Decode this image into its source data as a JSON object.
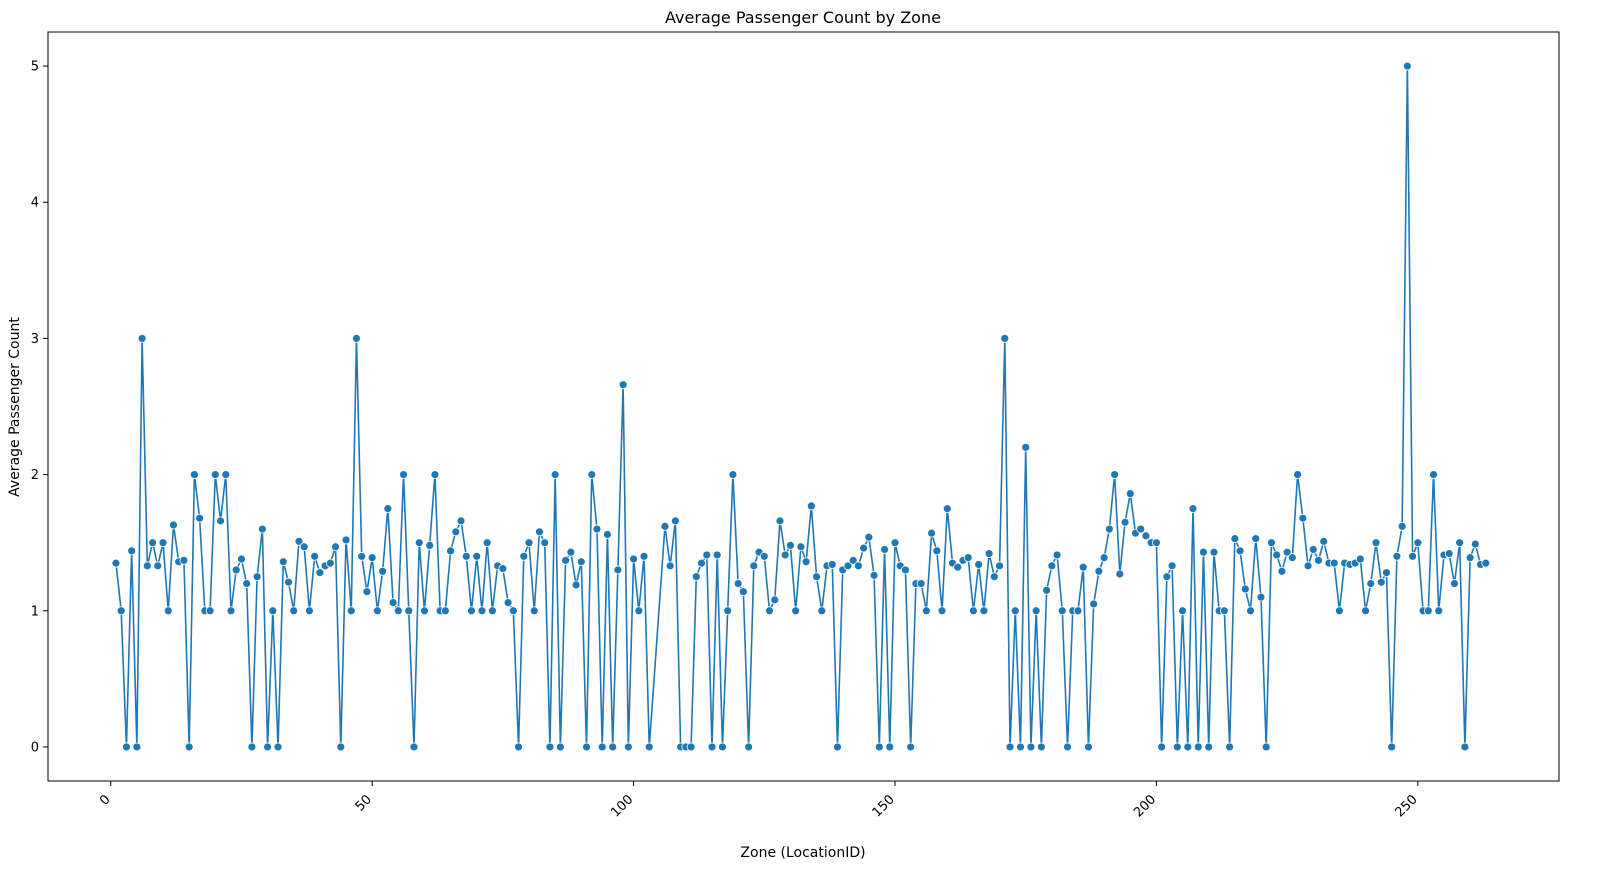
{
  "chart_data": {
    "type": "line",
    "title": "Average Passenger Count by Zone",
    "xlabel": "Zone (LocationID)",
    "ylabel": "Average Passenger Count",
    "xlim": [
      -12,
      277
    ],
    "ylim": [
      -0.25,
      5.25
    ],
    "xticks": [
      0,
      50,
      100,
      150,
      200,
      250
    ],
    "yticks": [
      0,
      1,
      2,
      3,
      4,
      5
    ],
    "grid": false,
    "colors": {
      "line": "#1f77b4",
      "marker": "#1f77b4",
      "marker_edge": "#ffffff"
    },
    "series": [
      {
        "x": [
          1,
          2,
          3,
          4,
          5,
          6,
          7,
          8,
          9,
          10,
          11,
          12,
          13,
          14,
          15,
          16,
          17,
          18,
          19,
          20,
          21,
          22,
          23,
          24,
          25,
          26,
          27,
          28,
          29,
          30,
          31,
          32,
          33,
          34,
          35,
          36,
          37,
          38,
          39,
          40,
          41,
          42,
          43,
          44,
          45,
          46,
          47,
          48,
          49,
          50,
          51,
          52,
          53,
          54,
          55,
          56,
          57,
          58,
          59,
          60,
          61,
          62,
          63,
          64,
          65,
          66,
          67,
          68,
          69,
          70,
          71,
          72,
          73,
          74,
          75,
          76,
          77,
          78,
          79,
          80,
          81,
          82,
          83,
          84,
          85,
          86,
          87,
          88,
          89,
          90,
          91,
          92,
          93,
          94,
          95,
          96,
          97,
          98,
          99,
          100,
          101,
          102,
          103,
          106,
          107,
          108,
          109,
          110,
          111,
          112,
          113,
          114,
          115,
          116,
          117,
          118,
          119,
          120,
          121,
          122,
          123,
          124,
          125,
          126,
          127,
          128,
          129,
          130,
          131,
          132,
          133,
          134,
          135,
          136,
          137,
          138,
          139,
          140,
          141,
          142,
          143,
          144,
          145,
          146,
          147,
          148,
          149,
          150,
          151,
          152,
          153,
          154,
          155,
          156,
          157,
          158,
          159,
          160,
          161,
          162,
          163,
          164,
          165,
          166,
          167,
          168,
          169,
          170,
          171,
          172,
          173,
          174,
          175,
          176,
          177,
          178,
          179,
          180,
          181,
          182,
          183,
          184,
          185,
          186,
          187,
          188,
          189,
          190,
          191,
          192,
          193,
          194,
          195,
          196,
          197,
          198,
          199,
          200,
          201,
          202,
          203,
          204,
          205,
          206,
          207,
          208,
          209,
          210,
          211,
          212,
          213,
          214,
          215,
          216,
          217,
          218,
          219,
          220,
          221,
          222,
          223,
          224,
          225,
          226,
          227,
          228,
          229,
          230,
          231,
          232,
          233,
          234,
          235,
          236,
          237,
          238,
          239,
          240,
          241,
          242,
          243,
          244,
          245,
          246,
          247,
          248,
          249,
          250,
          251,
          252,
          253,
          254,
          255,
          256,
          257,
          258,
          259,
          260,
          261,
          262,
          263
        ],
        "values": [
          1.35,
          1.0,
          0.0,
          1.44,
          0.0,
          3.0,
          1.33,
          1.5,
          1.33,
          1.5,
          1.0,
          1.63,
          1.36,
          1.37,
          0.0,
          2.0,
          1.68,
          1.0,
          1.0,
          2.0,
          1.66,
          2.0,
          1.0,
          1.3,
          1.38,
          1.2,
          0.0,
          1.25,
          1.6,
          0.0,
          1.0,
          0.0,
          1.36,
          1.21,
          1.0,
          1.51,
          1.47,
          1.0,
          1.4,
          1.28,
          1.33,
          1.35,
          1.47,
          0.0,
          1.52,
          1.0,
          3.0,
          1.4,
          1.14,
          1.39,
          1.0,
          1.29,
          1.75,
          1.06,
          1.0,
          2.0,
          1.0,
          0.0,
          1.5,
          1.0,
          1.48,
          2.0,
          1.0,
          1.0,
          1.44,
          1.58,
          1.66,
          1.4,
          1.0,
          1.4,
          1.0,
          1.5,
          1.0,
          1.33,
          1.31,
          1.06,
          1.0,
          0.0,
          1.4,
          1.5,
          1.0,
          1.58,
          1.5,
          0.0,
          2.0,
          0.0,
          1.37,
          1.43,
          1.19,
          1.36,
          0.0,
          2.0,
          1.6,
          0.0,
          1.56,
          0.0,
          1.3,
          2.66,
          0.0,
          1.38,
          1.0,
          1.4,
          0.0,
          1.62,
          1.33,
          1.66,
          0.0,
          0.0,
          0.0,
          1.25,
          1.35,
          1.41,
          0.0,
          1.41,
          0.0,
          1.0,
          2.0,
          1.2,
          1.14,
          0.0,
          1.33,
          1.43,
          1.4,
          1.0,
          1.08,
          1.66,
          1.41,
          1.48,
          1.0,
          1.47,
          1.36,
          1.77,
          1.25,
          1.0,
          1.33,
          1.34,
          0.0,
          1.3,
          1.33,
          1.37,
          1.33,
          1.46,
          1.54,
          1.26,
          0.0,
          1.45,
          0.0,
          1.5,
          1.33,
          1.3,
          0.0,
          1.2,
          1.2,
          1.0,
          1.57,
          1.44,
          1.0,
          1.75,
          1.35,
          1.32,
          1.37,
          1.39,
          1.0,
          1.34,
          1.0,
          1.42,
          1.25,
          1.33,
          3.0,
          0.0,
          1.0,
          0.0,
          2.2,
          0.0,
          1.0,
          0.0,
          1.15,
          1.33,
          1.41,
          1.0,
          0.0,
          1.0,
          1.0,
          1.32,
          0.0,
          1.05,
          1.29,
          1.39,
          1.6,
          2.0,
          1.27,
          1.65,
          1.86,
          1.57,
          1.6,
          1.55,
          1.5,
          1.5,
          0.0,
          1.25,
          1.33,
          0.0,
          1.0,
          0.0,
          1.75,
          0.0,
          1.43,
          0.0,
          1.43,
          1.0,
          1.0,
          0.0,
          1.53,
          1.44,
          1.16,
          1.0,
          1.53,
          1.1,
          0.0,
          1.5,
          1.41,
          1.29,
          1.43,
          1.39,
          2.0,
          1.68,
          1.33,
          1.45,
          1.37,
          1.51,
          1.35,
          1.35,
          1.0,
          1.35,
          1.34,
          1.35,
          1.38,
          1.0,
          1.2,
          1.5,
          1.21,
          1.28,
          0.0,
          1.4,
          1.62,
          5.0,
          1.4,
          1.5,
          1.0,
          1.0,
          2.0,
          1.0,
          1.41,
          1.42,
          1.2,
          1.5,
          0.0,
          1.39,
          1.49,
          1.34,
          1.35
        ]
      }
    ]
  }
}
